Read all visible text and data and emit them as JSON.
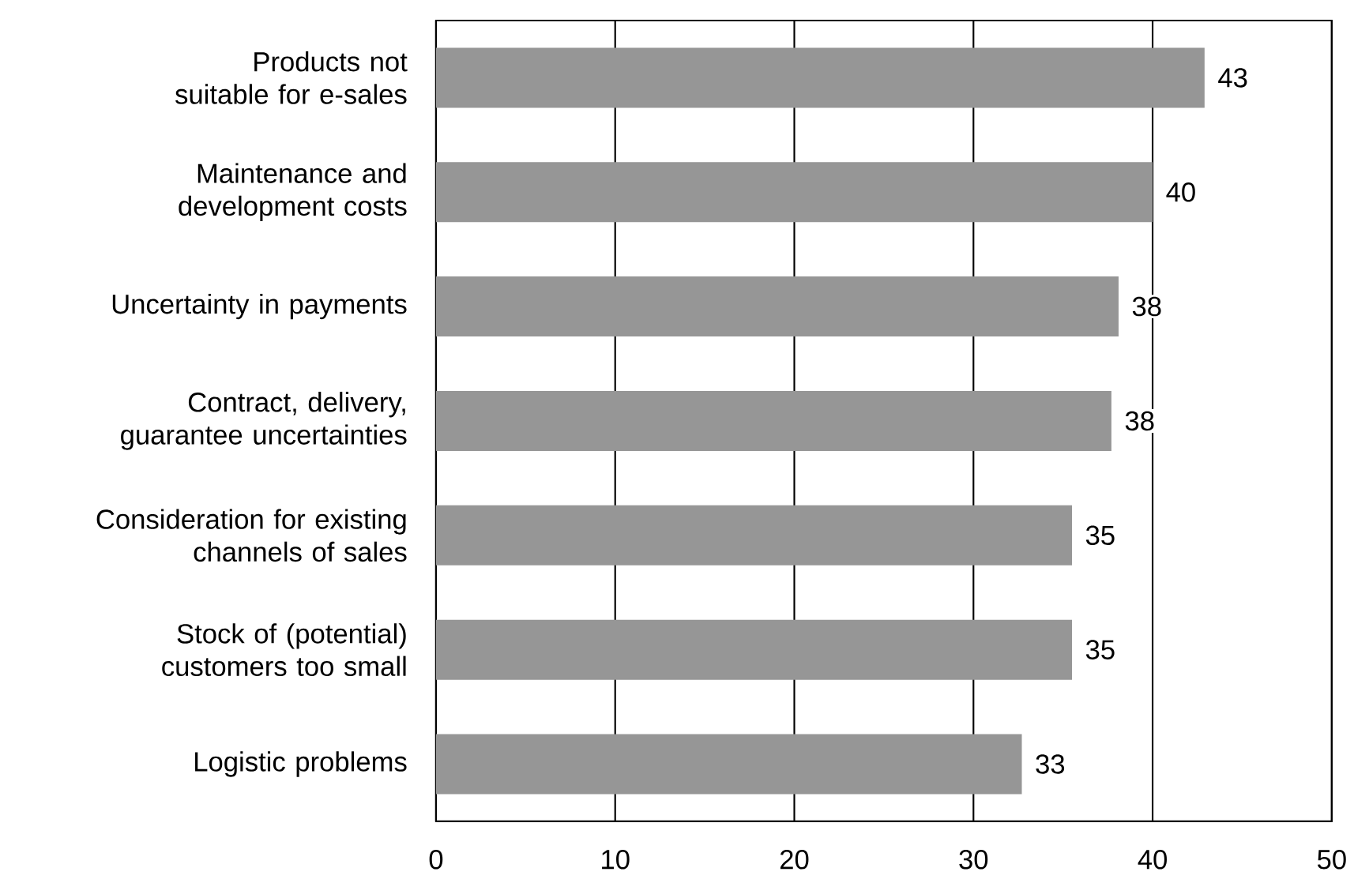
{
  "chart_data": {
    "type": "bar",
    "orientation": "horizontal",
    "categories": [
      "Products not suitable for e-sales",
      "Maintenance and development costs",
      "Uncertainty in payments",
      "Contract, delivery, guarantee uncertainties",
      "Consideration for existing channels of sales",
      "Stock of (potential) customers too small",
      "Logistic problems"
    ],
    "values": [
      42.9,
      40.0,
      38.1,
      37.7,
      35.5,
      35.5,
      32.7
    ],
    "value_labels": [
      "43",
      "40",
      "38",
      "38",
      "35",
      "35",
      "33"
    ],
    "color": "#969696",
    "xlim": [
      0,
      50
    ],
    "xticks": [
      0,
      10,
      20,
      30,
      40,
      50
    ],
    "grid": "x"
  }
}
